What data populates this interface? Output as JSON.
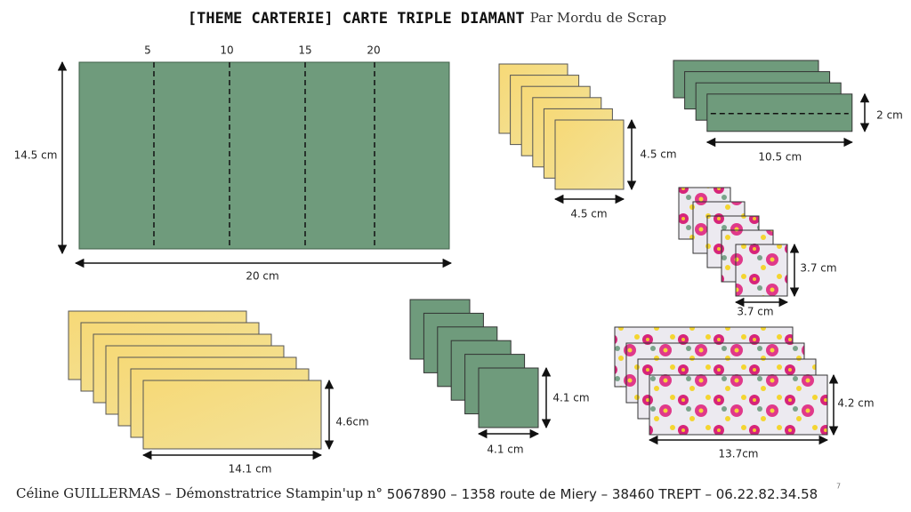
{
  "header": {
    "title": "[THEME CARTERIE] CARTE TRIPLE DIAMANT",
    "subtitle": "Par Mordu de Scrap"
  },
  "base_card": {
    "score_marks": [
      "5",
      "10",
      "15",
      "20"
    ],
    "height": "14.5 cm",
    "width": "20 cm"
  },
  "yellow_squares": {
    "height": "4.5 cm",
    "width": "4.5 cm"
  },
  "green_strips": {
    "height": "2 cm",
    "width": "10.5 cm"
  },
  "floral_squares": {
    "height": "3.7 cm",
    "width": "3.7 cm"
  },
  "yellow_panels": {
    "height": "4.6cm",
    "width": "14.1 cm"
  },
  "green_squares": {
    "height": "4.1 cm",
    "width": "4.1 cm"
  },
  "floral_panels": {
    "height": "4.2 cm",
    "width": "13.7cm"
  },
  "footer": {
    "name": "Céline GUILLERMAS – Démonstratrice Stampin'up n°",
    "details": " 5067890 – 1358 route de Miery – 38460 TREPT – 06.22.82.34.58",
    "page": "7"
  }
}
